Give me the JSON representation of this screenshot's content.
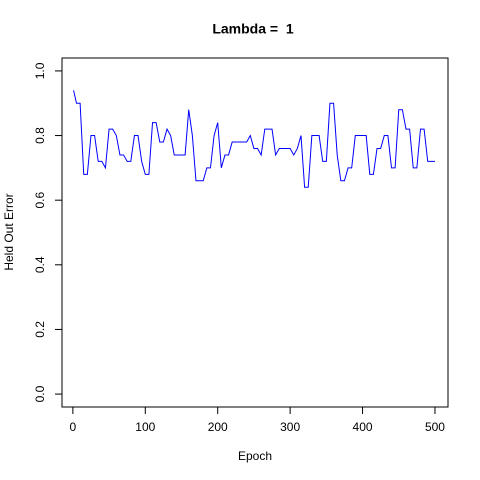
{
  "chart_data": {
    "type": "line",
    "title": "Lambda =  1",
    "xlabel": "Epoch",
    "ylabel": "Held Out Error",
    "x": [
      1,
      5,
      10,
      15,
      20,
      25,
      30,
      35,
      40,
      45,
      50,
      55,
      60,
      65,
      70,
      75,
      80,
      85,
      90,
      95,
      100,
      105,
      110,
      115,
      120,
      125,
      130,
      135,
      140,
      145,
      150,
      155,
      160,
      165,
      170,
      175,
      180,
      185,
      190,
      195,
      200,
      205,
      210,
      215,
      220,
      225,
      230,
      235,
      240,
      245,
      250,
      255,
      260,
      265,
      270,
      275,
      280,
      285,
      290,
      295,
      300,
      305,
      310,
      315,
      320,
      325,
      330,
      335,
      340,
      345,
      350,
      355,
      360,
      365,
      370,
      375,
      380,
      385,
      390,
      395,
      400,
      405,
      410,
      415,
      420,
      425,
      430,
      435,
      440,
      445,
      450,
      455,
      460,
      465,
      470,
      475,
      480,
      485,
      490,
      495,
      500
    ],
    "values": [
      0.94,
      0.9,
      0.9,
      0.68,
      0.68,
      0.8,
      0.8,
      0.72,
      0.72,
      0.7,
      0.82,
      0.82,
      0.8,
      0.74,
      0.74,
      0.72,
      0.72,
      0.8,
      0.8,
      0.72,
      0.68,
      0.68,
      0.84,
      0.84,
      0.78,
      0.78,
      0.82,
      0.8,
      0.74,
      0.74,
      0.74,
      0.74,
      0.88,
      0.8,
      0.66,
      0.66,
      0.66,
      0.7,
      0.7,
      0.8,
      0.84,
      0.7,
      0.74,
      0.74,
      0.78,
      0.78,
      0.78,
      0.78,
      0.78,
      0.8,
      0.76,
      0.76,
      0.74,
      0.82,
      0.82,
      0.82,
      0.74,
      0.76,
      0.76,
      0.76,
      0.76,
      0.74,
      0.76,
      0.8,
      0.64,
      0.64,
      0.8,
      0.8,
      0.8,
      0.72,
      0.72,
      0.9,
      0.9,
      0.74,
      0.66,
      0.66,
      0.7,
      0.7,
      0.8,
      0.8,
      0.8,
      0.8,
      0.68,
      0.68,
      0.76,
      0.76,
      0.8,
      0.8,
      0.7,
      0.7,
      0.88,
      0.88,
      0.82,
      0.82,
      0.7,
      0.7,
      0.82,
      0.82,
      0.72,
      0.72,
      0.72
    ],
    "color": "#0000ff",
    "xlim": [
      -15,
      518
    ],
    "xticks": [
      0,
      100,
      200,
      300,
      400,
      500
    ],
    "ylim": [
      -0.04,
      1.04
    ],
    "yticks": [
      {
        "value": 0,
        "label": "0.0"
      },
      0.2,
      0.4,
      0.6,
      0.8,
      {
        "value": 1,
        "label": "1.0"
      }
    ]
  }
}
